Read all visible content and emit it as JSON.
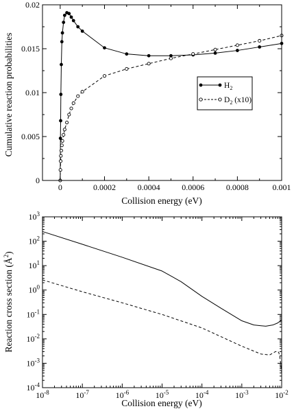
{
  "chart_data": [
    {
      "type": "line",
      "xlabel": "Collision energy (eV)",
      "ylabel": "Cumulative reaction probabilities",
      "xlim": [
        -8e-05,
        0.001
      ],
      "ylim": [
        0,
        0.02
      ],
      "x_ticks": [
        0,
        0.0002,
        0.0004,
        0.0006,
        0.0008,
        0.001
      ],
      "x_tick_labels": [
        "0",
        "0.0002",
        "0.0004",
        "0.0006",
        "0.0008",
        "0.001"
      ],
      "y_ticks": [
        0,
        0.005,
        0.01,
        0.015,
        0.02
      ],
      "y_tick_labels": [
        "0",
        "0.005",
        "0.01",
        "0.015",
        "0.02"
      ],
      "legend_position": "center-right",
      "series": [
        {
          "name": "H2",
          "legend_base": "H",
          "legend_sub": "2",
          "legend_suffix": "",
          "marker": "filled-circle",
          "line": "solid",
          "x": [
            0,
            1e-06,
            2e-06,
            3e-06,
            5e-06,
            7.5e-06,
            1e-05,
            1.5e-05,
            2e-05,
            3e-05,
            4e-05,
            5e-05,
            6e-05,
            8e-05,
            0.0001,
            0.0002,
            0.0003,
            0.0004,
            0.0005,
            0.0006,
            0.0007,
            0.0008,
            0.0009,
            0.001
          ],
          "y": [
            0,
            0.0048,
            0.0068,
            0.0098,
            0.0132,
            0.0158,
            0.0168,
            0.018,
            0.0188,
            0.0191,
            0.019,
            0.0186,
            0.0182,
            0.0175,
            0.017,
            0.0151,
            0.0144,
            0.0142,
            0.0142,
            0.0143,
            0.0145,
            0.0148,
            0.0152,
            0.0156
          ]
        },
        {
          "name": "D2 (x10)",
          "legend_base": "D",
          "legend_sub": "2",
          "legend_suffix": " (x10)",
          "marker": "open-circle",
          "line": "dashed",
          "x": [
            0,
            1e-06,
            2e-06,
            3e-06,
            5e-06,
            7.5e-06,
            1e-05,
            1.5e-05,
            2e-05,
            3e-05,
            4e-05,
            5e-05,
            6e-05,
            8e-05,
            0.0001,
            0.0002,
            0.0003,
            0.0004,
            0.0005,
            0.0006,
            0.0007,
            0.0008,
            0.0009,
            0.001
          ],
          "y": [
            0,
            0.0012,
            0.0022,
            0.0028,
            0.0034,
            0.004,
            0.0045,
            0.0052,
            0.0058,
            0.0066,
            0.0075,
            0.0082,
            0.0088,
            0.0096,
            0.0101,
            0.0119,
            0.0127,
            0.0133,
            0.0139,
            0.0144,
            0.0149,
            0.0154,
            0.0159,
            0.0165
          ]
        }
      ]
    },
    {
      "type": "line",
      "xlabel": "Collision energy (eV)",
      "ylabel_main": "Reaction cross section (",
      "ylabel_unit": "Å",
      "ylabel_sup": "2",
      "ylabel_close": ")",
      "x_scale": "log",
      "y_scale": "log",
      "xlim": [
        1e-08,
        0.01
      ],
      "ylim": [
        0.0001,
        1000
      ],
      "x_tick_exponents": [
        -8,
        -7,
        -6,
        -5,
        -4,
        -3,
        -2
      ],
      "y_tick_exponents": [
        -4,
        -3,
        -2,
        -1,
        0,
        1,
        2,
        3
      ],
      "tick_base": "10",
      "series": [
        {
          "line": "solid",
          "x": [
            1e-08,
            1e-07,
            1e-06,
            1e-05,
            3e-05,
            0.0001,
            0.0003,
            0.001,
            0.002,
            0.004,
            0.006,
            0.008,
            0.01
          ],
          "y": [
            250,
            75,
            22,
            6,
            2.2,
            0.55,
            0.18,
            0.055,
            0.037,
            0.033,
            0.037,
            0.045,
            0.06
          ]
        },
        {
          "line": "dashed",
          "x": [
            1e-08,
            1e-07,
            1e-06,
            1e-05,
            0.0001,
            0.001,
            0.003,
            0.005,
            0.007,
            0.008,
            0.0085,
            0.009,
            0.0095,
            0.01
          ],
          "y": [
            2.6,
            0.85,
            0.3,
            0.1,
            0.028,
            0.005,
            0.0024,
            0.0022,
            0.003,
            0.0031,
            0.0027,
            0.0018,
            0.0009,
            0.0004
          ]
        }
      ]
    }
  ]
}
